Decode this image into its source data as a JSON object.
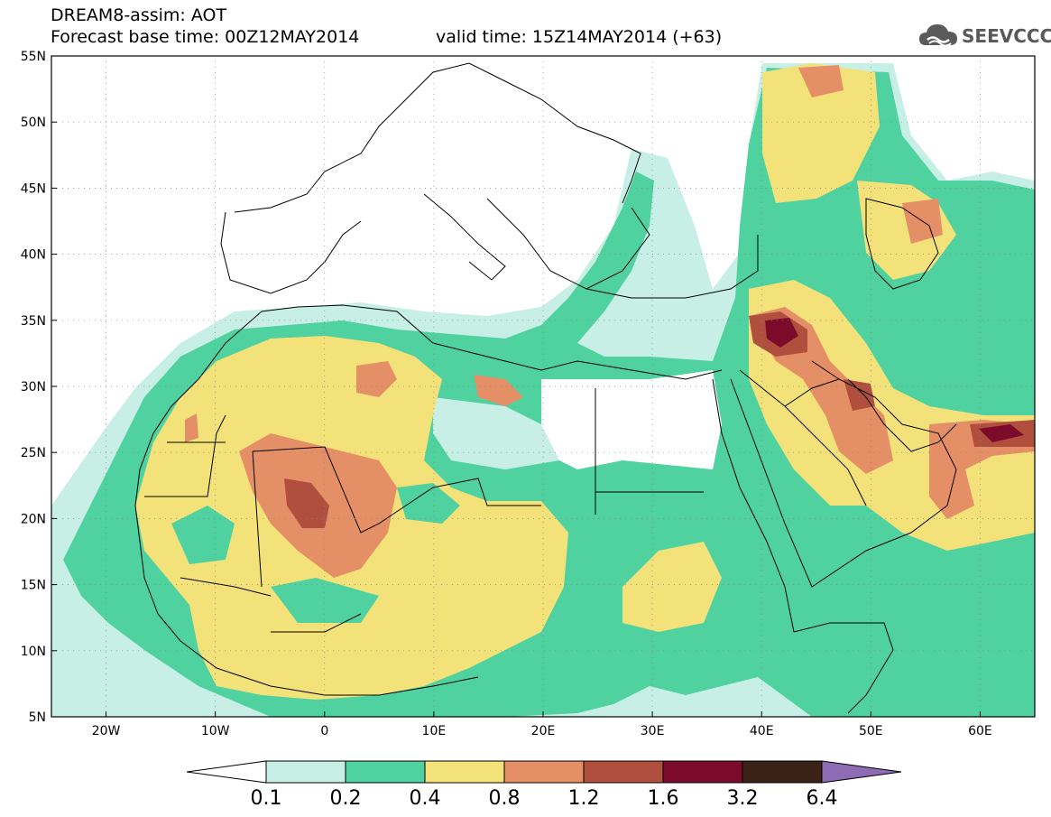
{
  "header": {
    "title_line1": "DREAM8-assim: AOT",
    "base_time": "Forecast base time: 00Z12MAY2014",
    "valid_time": "valid time: 15Z14MAY2014 (+63)"
  },
  "logo": {
    "text": "SEEVCCC",
    "icon": "cloud-icon"
  },
  "map": {
    "lat_labels": [
      "55N",
      "50N",
      "45N",
      "40N",
      "35N",
      "30N",
      "25N",
      "20N",
      "15N",
      "10N",
      "5N"
    ],
    "lon_labels": [
      "20W",
      "10W",
      "0",
      "10E",
      "20E",
      "30E",
      "40E",
      "50E",
      "60E"
    ],
    "lon_range": [
      -25,
      65
    ],
    "lat_range": [
      5,
      55
    ],
    "variable": "AOT"
  },
  "colorbar": {
    "thresholds": [
      "0.1",
      "0.2",
      "0.4",
      "0.8",
      "1.2",
      "1.6",
      "3.2",
      "6.4"
    ],
    "colors": [
      "#ffffff",
      "#c7efe6",
      "#4fd1a0",
      "#f3e27a",
      "#e58f66",
      "#b04f3d",
      "#7c0a2b",
      "#3a2316",
      "#8e6bb5"
    ]
  },
  "palette": {
    "c01": "#c7efe6",
    "c02": "#4fd1a0",
    "c04": "#f3e27a",
    "c08": "#e58f66",
    "c12": "#b04f3d",
    "c16": "#7c0a2b"
  }
}
